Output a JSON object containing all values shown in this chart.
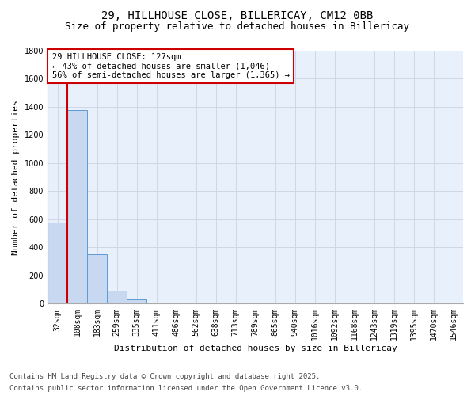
{
  "title1": "29, HILLHOUSE CLOSE, BILLERICAY, CM12 0BB",
  "title2": "Size of property relative to detached houses in Billericay",
  "xlabel": "Distribution of detached houses by size in Billericay",
  "ylabel": "Number of detached properties",
  "bin_labels": [
    "32sqm",
    "108sqm",
    "183sqm",
    "259sqm",
    "335sqm",
    "411sqm",
    "486sqm",
    "562sqm",
    "638sqm",
    "713sqm",
    "789sqm",
    "865sqm",
    "940sqm",
    "1016sqm",
    "1092sqm",
    "1168sqm",
    "1243sqm",
    "1319sqm",
    "1395sqm",
    "1470sqm",
    "1546sqm"
  ],
  "bar_values": [
    580,
    1375,
    350,
    90,
    28,
    10,
    5,
    3,
    2,
    1,
    1,
    1,
    0,
    0,
    0,
    0,
    0,
    0,
    0,
    0,
    0
  ],
  "bar_color": "#c8d8f0",
  "bar_edge_color": "#5b9bd5",
  "grid_color": "#d0d8e8",
  "bg_color": "#e8f0fc",
  "vline_color": "#cc0000",
  "annotation_text": "29 HILLHOUSE CLOSE: 127sqm\n← 43% of detached houses are smaller (1,046)\n56% of semi-detached houses are larger (1,365) →",
  "annotation_box_color": "#cc0000",
  "ylim": [
    0,
    1800
  ],
  "yticks": [
    0,
    200,
    400,
    600,
    800,
    1000,
    1200,
    1400,
    1600,
    1800
  ],
  "footer1": "Contains HM Land Registry data © Crown copyright and database right 2025.",
  "footer2": "Contains public sector information licensed under the Open Government Licence v3.0.",
  "title1_fontsize": 10,
  "title2_fontsize": 9,
  "xlabel_fontsize": 8,
  "ylabel_fontsize": 8,
  "tick_fontsize": 7,
  "annotation_fontsize": 7.5,
  "footer_fontsize": 6.5
}
